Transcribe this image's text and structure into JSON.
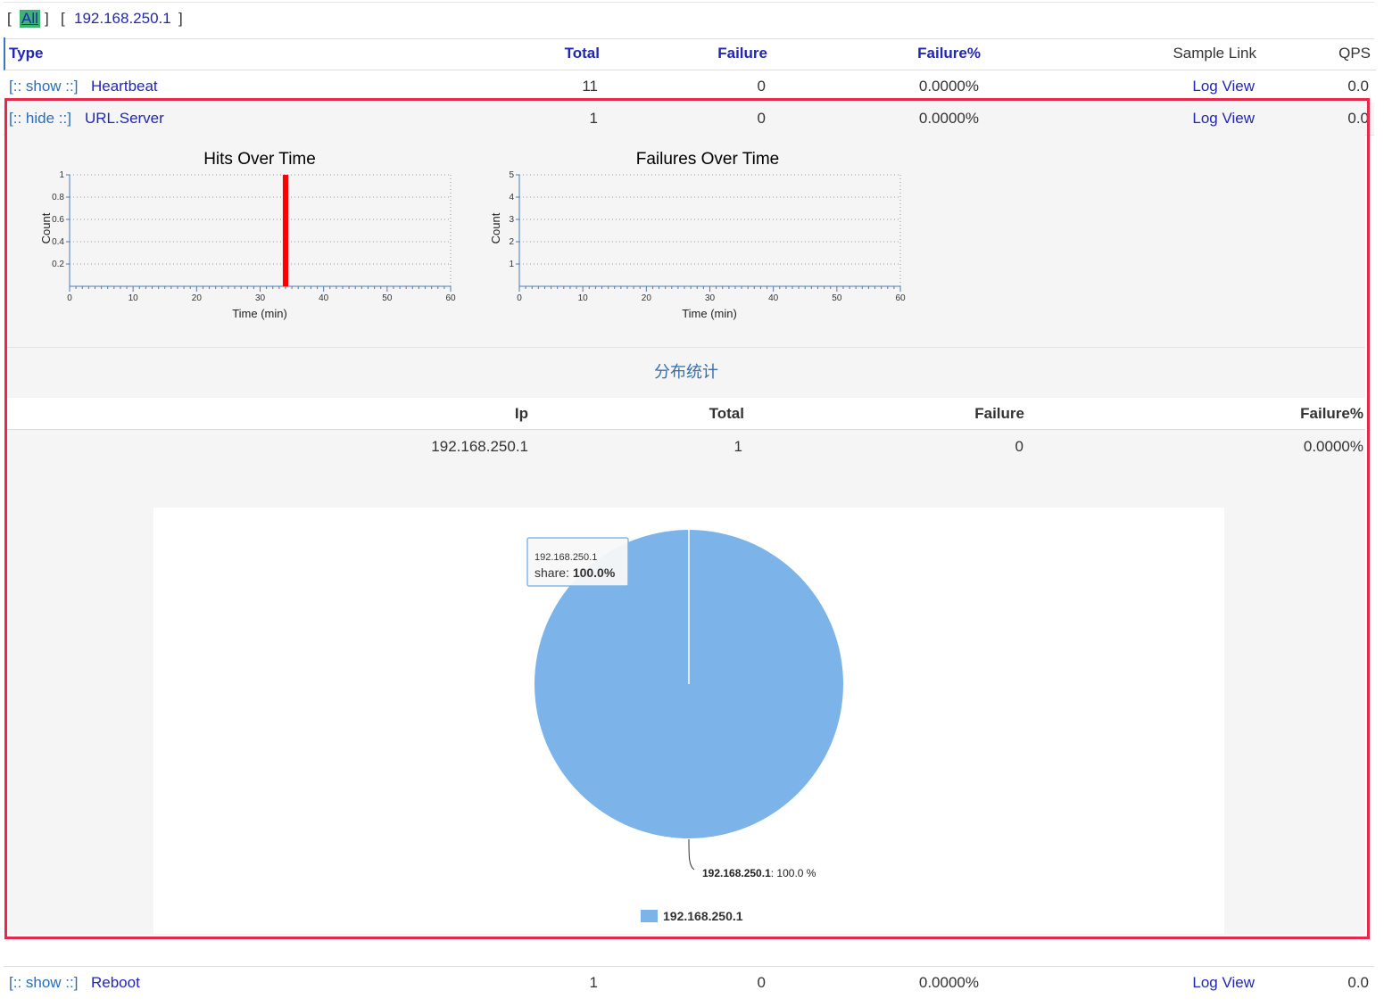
{
  "filter": {
    "open1": "[",
    "all": "All",
    "close1": "]",
    "open2": "[",
    "ip": "192.168.250.1",
    "close2": "]"
  },
  "header": {
    "type": "Type",
    "total": "Total",
    "failure": "Failure",
    "failure_pct": "Failure%",
    "sample_link": "Sample Link",
    "qps": "QPS"
  },
  "rows": [
    {
      "toggle": "[:: show ::]",
      "name": "Heartbeat",
      "total": "11",
      "failure": "0",
      "failure_pct": "0.0000%",
      "link": "Log View",
      "qps": "0.0"
    },
    {
      "toggle": "[:: hide ::]",
      "name": "URL.Server",
      "total": "1",
      "failure": "0",
      "failure_pct": "0.0000%",
      "link": "Log View",
      "qps": "0.0"
    },
    {
      "toggle": "[:: show ::]",
      "name": "Reboot",
      "total": "1",
      "failure": "0",
      "failure_pct": "0.0000%",
      "link": "Log View",
      "qps": "0.0"
    }
  ],
  "colors": {
    "hit_bar": "#ff0000",
    "axis": "#4a7ab5",
    "pie": "#7cb4ea",
    "highlight": "#e8274b"
  },
  "chart_data": [
    {
      "type": "bar",
      "title": "Hits Over Time",
      "xlabel": "Time (min)",
      "ylabel": "Count",
      "xlim": [
        0,
        60
      ],
      "ylim": [
        0,
        1
      ],
      "xticks": [
        "0",
        "10",
        "20",
        "30",
        "40",
        "50",
        "60"
      ],
      "yticks": [
        "0.2",
        "0.4",
        "0.6",
        "0.8",
        "1"
      ],
      "x": [
        34
      ],
      "values": [
        1
      ],
      "grid": true
    },
    {
      "type": "bar",
      "title": "Failures Over Time",
      "xlabel": "Time (min)",
      "ylabel": "Count",
      "xlim": [
        0,
        60
      ],
      "ylim": [
        0,
        5
      ],
      "xticks": [
        "0",
        "10",
        "20",
        "30",
        "40",
        "50",
        "60"
      ],
      "yticks": [
        "1",
        "2",
        "3",
        "4",
        "5"
      ],
      "x": [],
      "values": [],
      "grid": true
    },
    {
      "type": "pie",
      "title": "",
      "categories": [
        "192.168.250.1"
      ],
      "values": [
        100.0
      ],
      "data_label": "192.168.250.1",
      "data_label_value": ": 100.0 %",
      "tooltip": {
        "title": "192.168.250.1",
        "label": "share: ",
        "value": "100.0%"
      },
      "legend": "bottom"
    }
  ],
  "distribution": {
    "title": "分布统计",
    "columns": {
      "ip": "Ip",
      "total": "Total",
      "failure": "Failure",
      "failure_pct": "Failure%"
    },
    "rows": [
      {
        "ip": "192.168.250.1",
        "total": "1",
        "failure": "0",
        "failure_pct": "0.0000%"
      }
    ]
  }
}
